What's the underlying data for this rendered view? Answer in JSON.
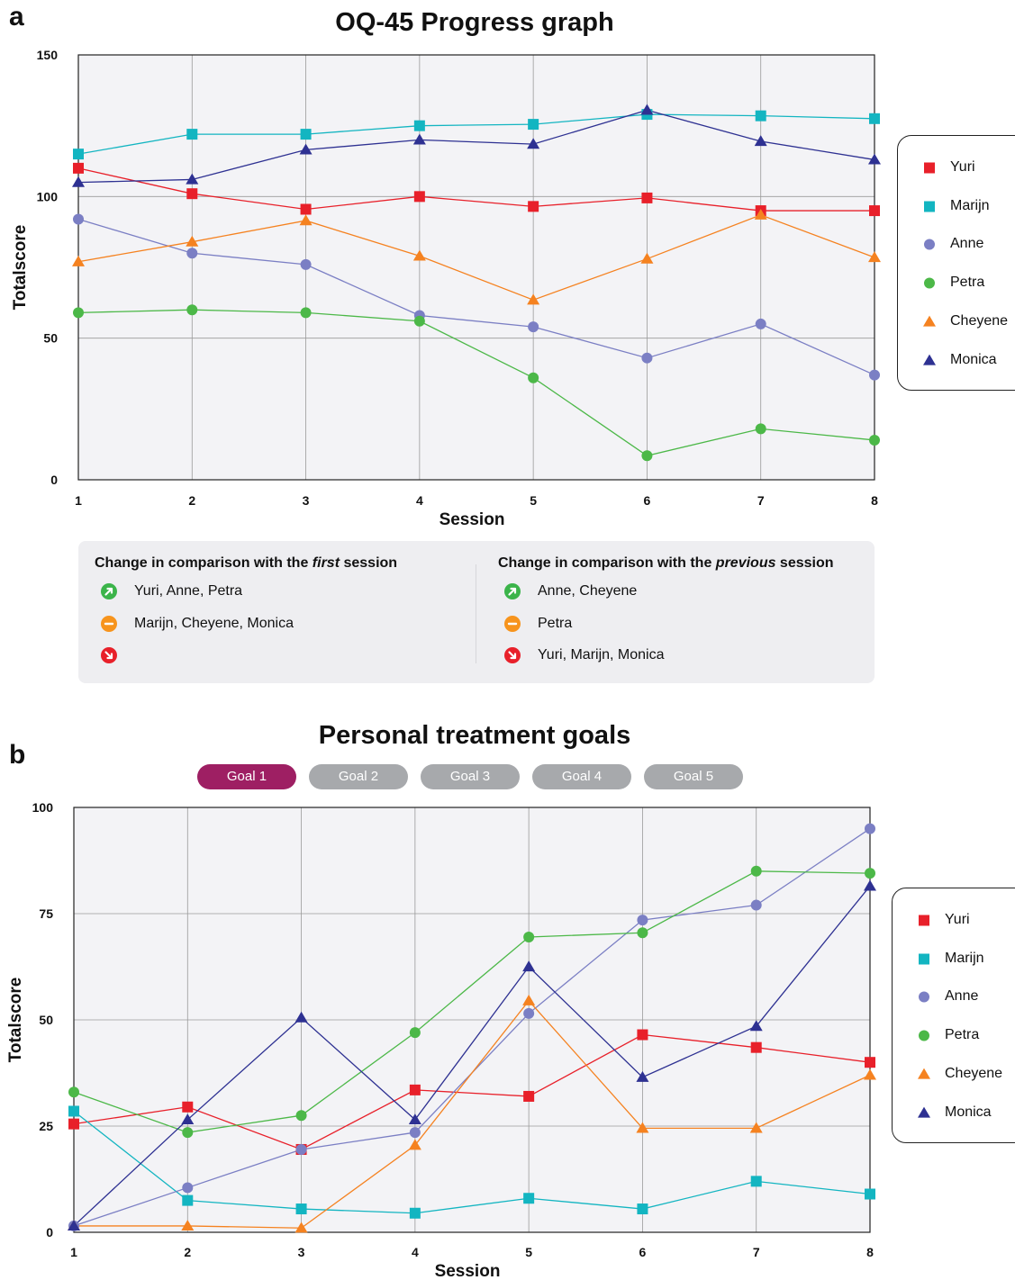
{
  "panel_a": {
    "letter": "a",
    "title": "OQ-45 Progress graph",
    "change_box": {
      "first": {
        "heading_pre": "Change in comparison with the ",
        "heading_em": "first",
        "heading_post": " session",
        "improved": "Yuri, Anne, Petra",
        "unchanged": "Marijn, Cheyene, Monica",
        "worsened": ""
      },
      "previous": {
        "heading_pre": "Change in comparison with the ",
        "heading_em": "previous",
        "heading_post": " session",
        "improved": "Anne, Cheyene",
        "unchanged": "Petra",
        "worsened": "Yuri, Marijn, Monica"
      },
      "status_colors": {
        "improved": "#3bb44a",
        "unchanged": "#f7941d",
        "worsened": "#e8202a"
      }
    }
  },
  "panel_b": {
    "letter": "b",
    "title": "Personal treatment goals",
    "tabs": [
      {
        "label": "Goal 1",
        "active": true
      },
      {
        "label": "Goal 2",
        "active": false
      },
      {
        "label": "Goal 3",
        "active": false
      },
      {
        "label": "Goal 4",
        "active": false
      },
      {
        "label": "Goal 5",
        "active": false
      }
    ],
    "tab_colors": {
      "active": "#9e1f63",
      "inactive": "#a7a9ac"
    }
  },
  "chart_data": [
    {
      "type": "line",
      "title": "OQ-45 Progress graph",
      "xlabel": "Session",
      "ylabel": "Totalscore",
      "x": [
        1,
        2,
        3,
        4,
        5,
        6,
        7,
        8
      ],
      "xlim": [
        1,
        8
      ],
      "ylim": [
        0,
        150
      ],
      "yticks": [
        0,
        50,
        100,
        150
      ],
      "grid": true,
      "legend": "right",
      "series": [
        {
          "name": "Yuri",
          "marker": "square",
          "color": "#e8202a",
          "values": [
            110,
            101,
            95.5,
            100,
            96.5,
            99.5,
            95,
            95
          ]
        },
        {
          "name": "Marijn",
          "marker": "square",
          "color": "#13b5c1",
          "values": [
            115,
            122,
            122,
            125,
            125.5,
            129,
            128.5,
            127.5
          ]
        },
        {
          "name": "Anne",
          "marker": "circle",
          "color": "#7b7fc4",
          "values": [
            92,
            80,
            76,
            58,
            54,
            43,
            55,
            37
          ]
        },
        {
          "name": "Petra",
          "marker": "circle",
          "color": "#4cb848",
          "values": [
            59,
            60,
            59,
            56,
            36,
            8.5,
            18,
            14
          ]
        },
        {
          "name": "Cheyene",
          "marker": "triangle",
          "color": "#f58220",
          "values": [
            77,
            84,
            91.5,
            79,
            63.5,
            78,
            93.5,
            78.5
          ]
        },
        {
          "name": "Monica",
          "marker": "triangle",
          "color": "#2e3192",
          "values": [
            105,
            106,
            116.5,
            120,
            118.5,
            130.5,
            119.5,
            113
          ]
        }
      ]
    },
    {
      "type": "line",
      "title": "Personal treatment goals",
      "xlabel": "Session",
      "ylabel": "Totalscore",
      "x": [
        1,
        2,
        3,
        4,
        5,
        6,
        7,
        8
      ],
      "xlim": [
        1,
        8
      ],
      "ylim": [
        0,
        100
      ],
      "yticks": [
        0,
        25,
        50,
        75,
        100
      ],
      "grid": true,
      "legend": "right",
      "series": [
        {
          "name": "Yuri",
          "marker": "square",
          "color": "#e8202a",
          "values": [
            25.5,
            29.5,
            19.5,
            33.5,
            32,
            46.5,
            43.5,
            40
          ]
        },
        {
          "name": "Marijn",
          "marker": "square",
          "color": "#13b5c1",
          "values": [
            28.5,
            7.5,
            5.5,
            4.5,
            8,
            5.5,
            12,
            9
          ]
        },
        {
          "name": "Anne",
          "marker": "circle",
          "color": "#7b7fc4",
          "values": [
            1.5,
            10.5,
            19.5,
            23.5,
            51.5,
            73.5,
            77,
            95
          ]
        },
        {
          "name": "Petra",
          "marker": "circle",
          "color": "#4cb848",
          "values": [
            33,
            23.5,
            27.5,
            47,
            69.5,
            70.5,
            85,
            84.5
          ]
        },
        {
          "name": "Cheyene",
          "marker": "triangle",
          "color": "#f58220",
          "values": [
            1.5,
            1.5,
            1,
            20.5,
            54.5,
            24.5,
            24.5,
            37
          ]
        },
        {
          "name": "Monica",
          "marker": "triangle",
          "color": "#2e3192",
          "values": [
            1.5,
            26.5,
            50.5,
            26.5,
            62.5,
            36.5,
            48.5,
            81.5
          ]
        }
      ]
    }
  ]
}
